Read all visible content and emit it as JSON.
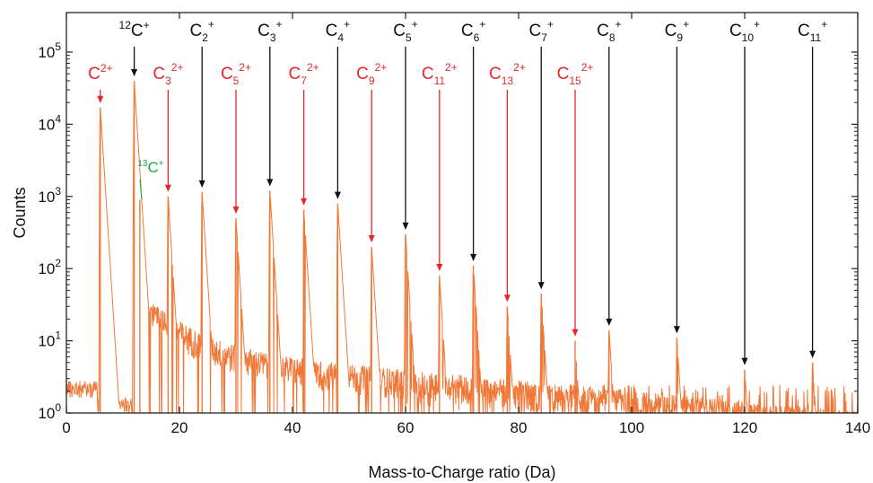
{
  "chart_data": {
    "type": "line",
    "xlabel": "Mass-to-Charge ratio (Da)",
    "ylabel": "Counts",
    "xlim": [
      0,
      140
    ],
    "ylim": [
      1,
      500000
    ],
    "yscale": "log",
    "x_ticks": [
      0,
      20,
      40,
      60,
      80,
      100,
      120,
      140
    ],
    "x_tick_labels": [
      "0",
      "20",
      "40",
      "60",
      "80",
      "100",
      "120",
      "140"
    ],
    "y_ticks": [
      1,
      10,
      100,
      1000,
      10000,
      100000
    ],
    "y_tick_labels": [
      {
        "base": "10",
        "exp": "0"
      },
      {
        "base": "10",
        "exp": "1"
      },
      {
        "base": "10",
        "exp": "2"
      },
      {
        "base": "10",
        "exp": "3"
      },
      {
        "base": "10",
        "exp": "4"
      },
      {
        "base": "10",
        "exp": "5"
      }
    ],
    "grid": false,
    "colors": {
      "spectrum": "#f07838",
      "singly_charged": "#111111",
      "doubly_charged": "#e8262a",
      "isotope": "#18a84a"
    },
    "peaks": [
      {
        "x": 6,
        "y": 17000
      },
      {
        "x": 12,
        "y": 40000
      },
      {
        "x": 13,
        "y": 900
      },
      {
        "x": 18,
        "y": 1000
      },
      {
        "x": 24,
        "y": 1150
      },
      {
        "x": 30,
        "y": 500
      },
      {
        "x": 36,
        "y": 1200
      },
      {
        "x": 42,
        "y": 650
      },
      {
        "x": 48,
        "y": 800
      },
      {
        "x": 54,
        "y": 200
      },
      {
        "x": 60,
        "y": 300
      },
      {
        "x": 66,
        "y": 80
      },
      {
        "x": 72,
        "y": 110
      },
      {
        "x": 78,
        "y": 30
      },
      {
        "x": 84,
        "y": 45
      },
      {
        "x": 90,
        "y": 10
      },
      {
        "x": 96,
        "y": 14
      },
      {
        "x": 108,
        "y": 11
      },
      {
        "x": 120,
        "y": 4
      },
      {
        "x": 132,
        "y": 5
      }
    ],
    "annotations": [
      {
        "label": "C",
        "sup": "2+",
        "sub": "",
        "x": 6,
        "tip_y": 17000,
        "color": "red",
        "row": "lower"
      },
      {
        "label": "C",
        "sup": "+",
        "pre": "12",
        "sub": "",
        "x": 12,
        "tip_y": 40000,
        "color": "black",
        "row": "upper"
      },
      {
        "label": "C",
        "sup": "+",
        "pre": "13",
        "sub": "",
        "x": 13,
        "tip_y": 900,
        "color": "green",
        "row": "isotope"
      },
      {
        "label": "C",
        "sub": "3",
        "sup": "2+",
        "x": 18,
        "tip_y": 1000,
        "color": "red",
        "row": "lower"
      },
      {
        "label": "C",
        "sub": "2",
        "sup": "+",
        "x": 24,
        "tip_y": 1150,
        "color": "black",
        "row": "upper"
      },
      {
        "label": "C",
        "sub": "5",
        "sup": "2+",
        "x": 30,
        "tip_y": 500,
        "color": "red",
        "row": "lower"
      },
      {
        "label": "C",
        "sub": "3",
        "sup": "+",
        "x": 36,
        "tip_y": 1200,
        "color": "black",
        "row": "upper"
      },
      {
        "label": "C",
        "sub": "7",
        "sup": "2+",
        "x": 42,
        "tip_y": 650,
        "color": "red",
        "row": "lower"
      },
      {
        "label": "C",
        "sub": "4",
        "sup": "+",
        "x": 48,
        "tip_y": 800,
        "color": "black",
        "row": "upper"
      },
      {
        "label": "C",
        "sub": "9",
        "sup": "2+",
        "x": 54,
        "tip_y": 200,
        "color": "red",
        "row": "lower"
      },
      {
        "label": "C",
        "sub": "5",
        "sup": "+",
        "x": 60,
        "tip_y": 300,
        "color": "black",
        "row": "upper"
      },
      {
        "label": "C",
        "sub": "11",
        "sup": "2+",
        "x": 66,
        "tip_y": 80,
        "color": "red",
        "row": "lower"
      },
      {
        "label": "C",
        "sub": "6",
        "sup": "+",
        "x": 72,
        "tip_y": 110,
        "color": "black",
        "row": "upper"
      },
      {
        "label": "C",
        "sub": "13",
        "sup": "2+",
        "x": 78,
        "tip_y": 30,
        "color": "red",
        "row": "lower"
      },
      {
        "label": "C",
        "sub": "7",
        "sup": "+",
        "x": 84,
        "tip_y": 45,
        "color": "black",
        "row": "upper"
      },
      {
        "label": "C",
        "sub": "15",
        "sup": "2+",
        "x": 90,
        "tip_y": 10,
        "color": "red",
        "row": "lower"
      },
      {
        "label": "C",
        "sub": "8",
        "sup": "+",
        "x": 96,
        "tip_y": 14,
        "color": "black",
        "row": "upper"
      },
      {
        "label": "C",
        "sub": "9",
        "sup": "+",
        "x": 108,
        "tip_y": 11,
        "color": "black",
        "row": "upper"
      },
      {
        "label": "C",
        "sub": "10",
        "sup": "+",
        "x": 120,
        "tip_y": 4,
        "color": "black",
        "row": "upper"
      },
      {
        "label": "C",
        "sub": "11",
        "sup": "+",
        "x": 132,
        "tip_y": 5,
        "color": "black",
        "row": "upper"
      }
    ]
  }
}
